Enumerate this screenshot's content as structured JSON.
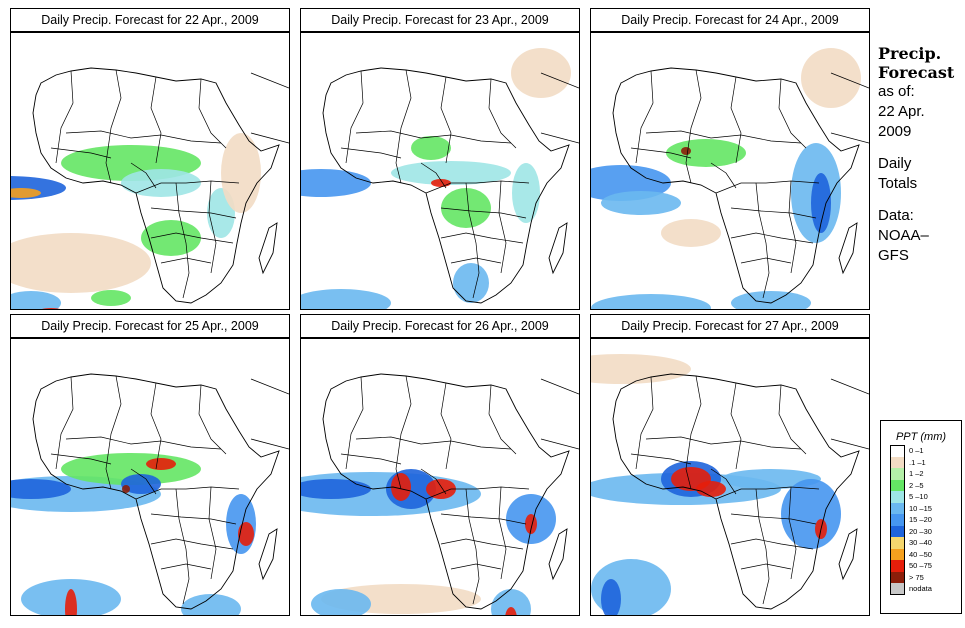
{
  "panels": [
    {
      "title": "Daily Precip. Forecast for  22 Apr., 2009"
    },
    {
      "title": "Daily Precip. Forecast for  23 Apr., 2009"
    },
    {
      "title": "Daily Precip. Forecast for  24 Apr., 2009"
    },
    {
      "title": "Daily Precip. Forecast for  25 Apr., 2009"
    },
    {
      "title": "Daily Precip. Forecast for  26 Apr., 2009"
    },
    {
      "title": "Daily Precip. Forecast for  27 Apr., 2009"
    }
  ],
  "sidebar": {
    "title_line1": "Precip.",
    "title_line2": "Forecast",
    "asof_line1": "as of:",
    "asof_line2": "22 Apr.",
    "asof_line3": "2009",
    "totals_line1": "Daily",
    "totals_line2": "Totals",
    "data_line1": "Data:",
    "data_line2": "NOAA–",
    "data_line3": "GFS"
  },
  "legend": {
    "title": "PPT (mm)",
    "items": [
      {
        "label": "0 –1",
        "color": "#ffffff"
      },
      {
        "label": ".1 –1",
        "color": "#f2dcc4"
      },
      {
        "label": "1 –2",
        "color": "#b4f0a8"
      },
      {
        "label": "2 –5",
        "color": "#64e664"
      },
      {
        "label": "5 –10",
        "color": "#9ee6e6"
      },
      {
        "label": "10 –15",
        "color": "#6ab8f0"
      },
      {
        "label": "15 –20",
        "color": "#4696f0"
      },
      {
        "label": "20 –30",
        "color": "#1e64dc"
      },
      {
        "label": "30 –40",
        "color": "#f5d76e"
      },
      {
        "label": "40 –50",
        "color": "#f5a01e"
      },
      {
        "label": "50 –75",
        "color": "#e61e0a"
      },
      {
        "label": "> 75",
        "color": "#8c1e0a"
      },
      {
        "label": "nodata",
        "color": "#c8c8c8"
      }
    ]
  }
}
